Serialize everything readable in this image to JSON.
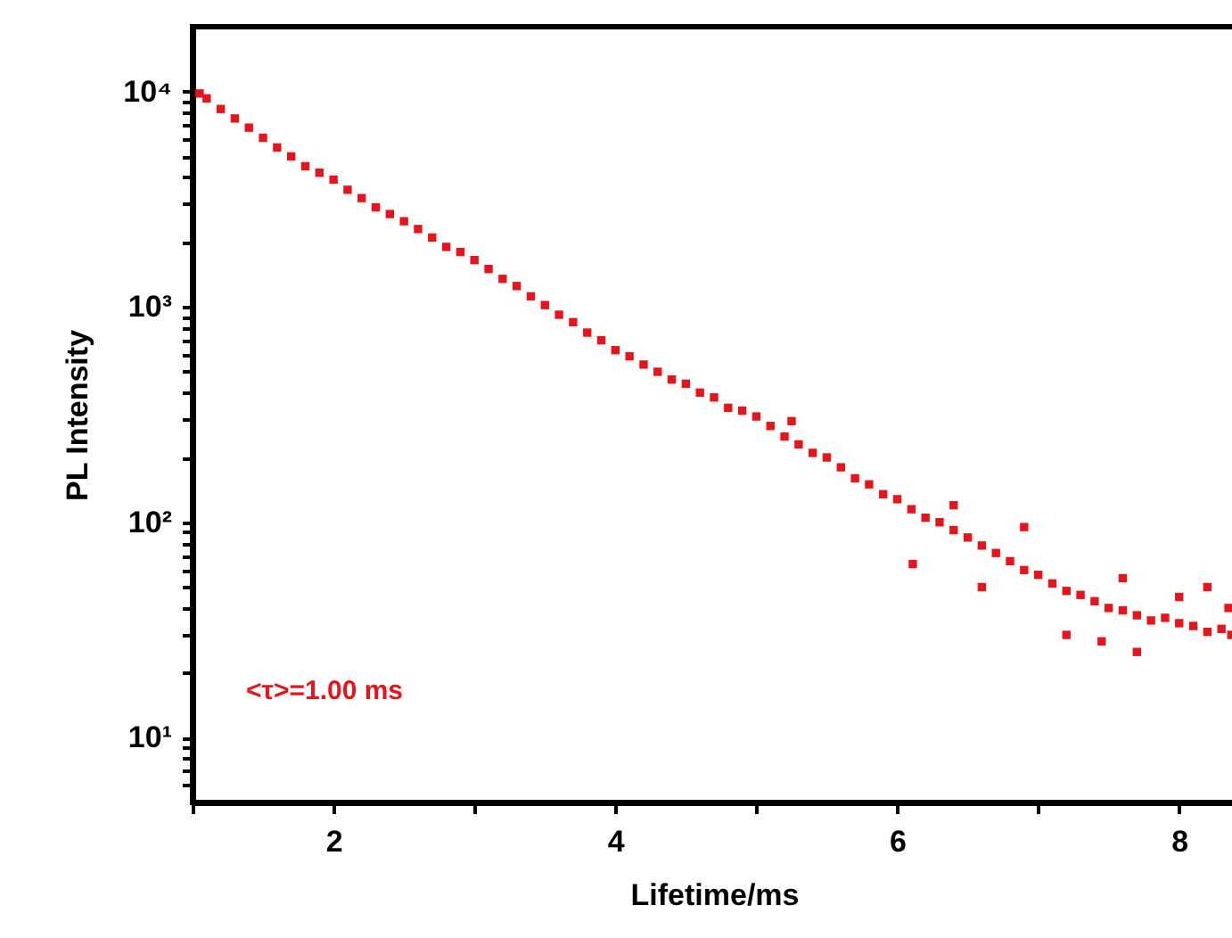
{
  "chart_data": {
    "type": "scatter",
    "xlabel": "Lifetime/ms",
    "ylabel": "PL Intensity",
    "log": "y",
    "grid": false,
    "marker": "square",
    "xlim": [
      1,
      8.4
    ],
    "xticks": [
      {
        "value": 1,
        "label": null
      },
      2,
      {
        "value": 3,
        "label": null
      },
      4,
      {
        "value": 5,
        "label": null
      },
      6,
      {
        "value": 7,
        "label": null
      },
      8
    ],
    "ylim": [
      5,
      20000
    ],
    "yticks": [
      {
        "value": 6,
        "label": null
      },
      {
        "value": 7,
        "label": null
      },
      {
        "value": 8,
        "label": null
      },
      {
        "value": 9,
        "label": null
      },
      {
        "value": 10,
        "label": "10¹"
      },
      {
        "value": 20,
        "label": null
      },
      {
        "value": 30,
        "label": null
      },
      {
        "value": 40,
        "label": null
      },
      {
        "value": 50,
        "label": null
      },
      {
        "value": 60,
        "label": null
      },
      {
        "value": 70,
        "label": null
      },
      {
        "value": 80,
        "label": null
      },
      {
        "value": 90,
        "label": null
      },
      {
        "value": 100,
        "label": "10²"
      },
      {
        "value": 200,
        "label": null
      },
      {
        "value": 300,
        "label": null
      },
      {
        "value": 400,
        "label": null
      },
      {
        "value": 500,
        "label": null
      },
      {
        "value": 600,
        "label": null
      },
      {
        "value": 700,
        "label": null
      },
      {
        "value": 800,
        "label": null
      },
      {
        "value": 900,
        "label": null
      },
      {
        "value": 1000,
        "label": "10³"
      },
      {
        "value": 2000,
        "label": null
      },
      {
        "value": 3000,
        "label": null
      },
      {
        "value": 4000,
        "label": null
      },
      {
        "value": 5000,
        "label": null
      },
      {
        "value": 6000,
        "label": null
      },
      {
        "value": 7000,
        "label": null
      },
      {
        "value": 8000,
        "label": null
      },
      {
        "value": 9000,
        "label": null
      },
      {
        "value": 10000,
        "label": "10⁴"
      }
    ],
    "annotations": [
      "<τ>=1.00 ms"
    ],
    "series": [
      {
        "color": "#e8141b",
        "x": [
          1.05,
          1.1,
          1.2,
          1.3,
          1.4,
          1.5,
          1.6,
          1.7,
          1.8,
          1.9,
          2.0,
          2.1,
          2.2,
          2.3,
          2.4,
          2.5,
          2.6,
          2.7,
          2.8,
          2.9,
          3.0,
          3.1,
          3.2,
          3.3,
          3.4,
          3.5,
          3.6,
          3.7,
          3.8,
          3.9,
          4.0,
          4.1,
          4.2,
          4.3,
          4.4,
          4.5,
          4.6,
          4.7,
          4.8,
          4.9,
          5.0,
          5.1,
          5.2,
          5.3,
          5.4,
          5.5,
          5.6,
          5.7,
          5.8,
          5.9,
          6.0,
          6.1,
          6.2,
          6.3,
          6.4,
          6.5,
          6.6,
          6.7,
          6.8,
          6.9,
          7.0,
          7.1,
          7.2,
          7.3,
          7.4,
          7.5,
          7.6,
          7.7,
          7.8,
          7.9,
          8.0,
          8.1,
          8.2,
          8.3,
          8.37,
          5.25,
          6.11,
          6.6,
          6.9,
          7.2,
          7.6,
          7.7,
          8.0,
          8.2,
          8.35,
          7.45,
          6.4
        ],
        "values": [
          9800,
          9300,
          8300,
          7500,
          6800,
          6100,
          5500,
          5000,
          4500,
          4200,
          3900,
          3500,
          3200,
          2900,
          2700,
          2500,
          2300,
          2100,
          1900,
          1800,
          1650,
          1500,
          1350,
          1250,
          1120,
          1020,
          920,
          850,
          760,
          700,
          630,
          590,
          540,
          500,
          460,
          440,
          400,
          380,
          340,
          330,
          310,
          280,
          250,
          230,
          210,
          200,
          180,
          160,
          150,
          135,
          128,
          115,
          105,
          100,
          92,
          85,
          78,
          72,
          66,
          60,
          57,
          52,
          48,
          46,
          43,
          40,
          39,
          37,
          35,
          36,
          34,
          33,
          31,
          32,
          30,
          295,
          64,
          50,
          95,
          30,
          55,
          25,
          45,
          50,
          40,
          28,
          120
        ]
      }
    ]
  }
}
